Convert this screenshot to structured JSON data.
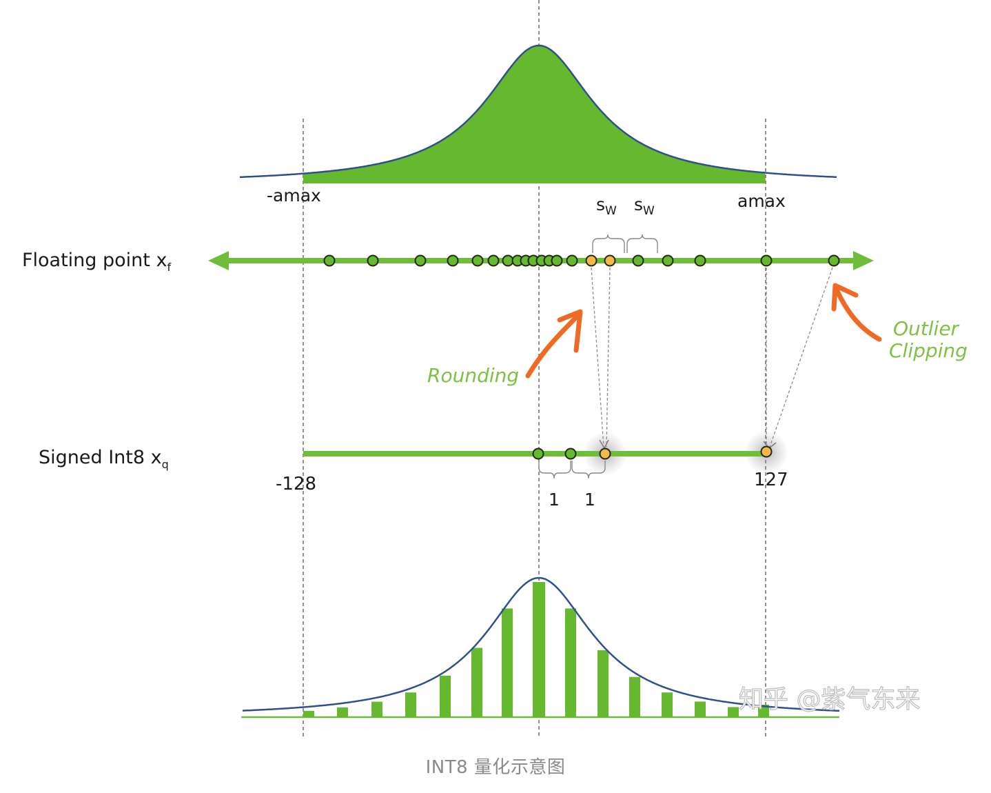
{
  "labels": {
    "neg_amax": "-amax",
    "amax": "amax",
    "scale_symbol": "s",
    "scale_subscript": "W",
    "float_axis_label": "Floating point x",
    "float_axis_subscript": "f",
    "int_axis_label": "Signed Int8 x",
    "int_axis_subscript": "q",
    "int_min": "-128",
    "int_max": "127",
    "unit_step": "1",
    "rounding": "Rounding",
    "outlier": "Outlier",
    "clipping": "Clipping"
  },
  "watermark": "知乎 @紫气东来",
  "caption": "INT8 量化示意图",
  "colors": {
    "green_fill": "#66b82e",
    "green_line": "#6fbe3b",
    "curve": "#2f4f8f",
    "orange": "#ef6a24",
    "point_highlight": "#f6b84a",
    "hand_text": "#7dc242"
  },
  "float_points": {
    "regular_count": 20,
    "highlighted_count": 2
  },
  "int_points": {
    "regular_count": 2,
    "highlighted_count": 2
  },
  "histogram": {
    "bar_count": 15
  }
}
